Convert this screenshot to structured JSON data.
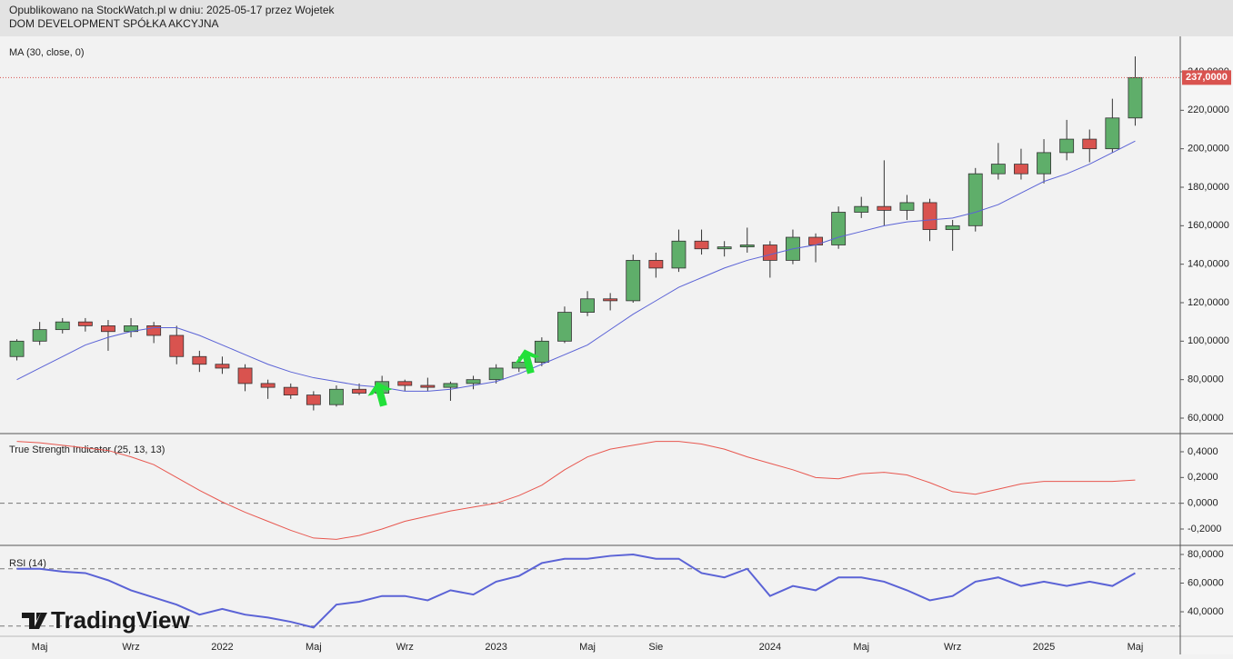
{
  "header": {
    "line1": "Opublikowano na StockWatch.pl w dniu: 2025-05-17 przez Wojetek",
    "line2": "DOM DEVELOPMENT SPÓŁKA AKCYJNA"
  },
  "logo": "TradingView",
  "chart_data": [
    {
      "type": "candlestick",
      "title": "MA (30, close, 0)",
      "categories": [
        null,
        "Maj",
        null,
        null,
        null,
        "Wrz",
        null,
        null,
        null,
        "2022",
        null,
        null,
        null,
        "Maj",
        null,
        null,
        null,
        "Wrz",
        null,
        null,
        null,
        "2023",
        null,
        null,
        null,
        "Maj",
        null,
        null,
        "Sie",
        null,
        null,
        null,
        null,
        "2024",
        null,
        null,
        null,
        "Maj",
        null,
        null,
        null,
        "Wrz",
        null,
        null,
        null,
        "2025",
        null,
        null,
        null,
        "Maj"
      ],
      "open": [
        92,
        100,
        106,
        110,
        108,
        105,
        108,
        103,
        92,
        88,
        86,
        78,
        76,
        72,
        67,
        75,
        73,
        79,
        77,
        76,
        78,
        80,
        86,
        89,
        100,
        115,
        122,
        121,
        142,
        138,
        152,
        148,
        149,
        150,
        142,
        154,
        150,
        167,
        170,
        168,
        172,
        158,
        160,
        187,
        192,
        187,
        198,
        205,
        200,
        216
      ],
      "high": [
        101,
        110,
        112,
        112,
        111,
        112,
        110,
        108,
        95,
        92,
        88,
        80,
        78,
        74,
        77,
        78,
        82,
        80,
        81,
        79,
        82,
        88,
        92,
        102,
        118,
        126,
        125,
        145,
        146,
        158,
        158,
        152,
        159,
        152,
        158,
        156,
        170,
        175,
        194,
        176,
        174,
        163,
        190,
        203,
        200,
        205,
        215,
        210,
        226,
        248
      ],
      "low": [
        90,
        98,
        104,
        105,
        95,
        102,
        99,
        88,
        84,
        83,
        74,
        70,
        70,
        64,
        66,
        72,
        68,
        74,
        74,
        69,
        75,
        78,
        84,
        87,
        99,
        113,
        116,
        120,
        133,
        136,
        145,
        144,
        146,
        133,
        140,
        141,
        148,
        164,
        160,
        163,
        152,
        147,
        157,
        184,
        184,
        182,
        194,
        193,
        198,
        212
      ],
      "close": [
        100,
        106,
        110,
        108,
        105,
        108,
        103,
        92,
        88,
        86,
        78,
        76,
        72,
        67,
        75,
        73,
        79,
        77,
        76,
        78,
        80,
        86,
        89,
        100,
        115,
        122,
        121,
        142,
        138,
        152,
        148,
        149,
        150,
        142,
        154,
        150,
        167,
        170,
        168,
        172,
        158,
        160,
        187,
        192,
        187,
        198,
        205,
        200,
        216,
        237
      ],
      "up_color": "#5fae6a",
      "down_color": "#d9534f",
      "ma_values": [
        80,
        86,
        92,
        98,
        102,
        105,
        107,
        107,
        103,
        98,
        93,
        88,
        84,
        81,
        79,
        77,
        76,
        74,
        74,
        75,
        77,
        79,
        83,
        88,
        93,
        98,
        106,
        114,
        121,
        128,
        133,
        138,
        142,
        145,
        148,
        150,
        154,
        157,
        160,
        162,
        163,
        164,
        167,
        171,
        177,
        183,
        187,
        192,
        198,
        204
      ],
      "ma_color": "#5b63d6",
      "last_price_label": "237,0000",
      "last_price_color": "#d9534f",
      "ylim": [
        51.97,
        258.42
      ],
      "yticks": [
        {
          "value": 60,
          "label": "60,0000"
        },
        {
          "value": 80,
          "label": "80,0000"
        },
        {
          "value": 100,
          "label": "100,0000"
        },
        {
          "value": 120,
          "label": "120,0000"
        },
        {
          "value": 140,
          "label": "140,0000"
        },
        {
          "value": 160,
          "label": "160,0000"
        },
        {
          "value": 180,
          "label": "180,0000"
        },
        {
          "value": 200,
          "label": "200,0000"
        },
        {
          "value": 220,
          "label": "220,0000"
        },
        {
          "value": 240,
          "label": "240,0000"
        }
      ]
    },
    {
      "type": "line",
      "title": "True Strength Indicator (25, 13, 13)",
      "color": "#e8574f",
      "values": [
        0.48,
        0.47,
        0.45,
        0.43,
        0.41,
        0.36,
        0.3,
        0.2,
        0.1,
        0.01,
        -0.07,
        -0.14,
        -0.21,
        -0.27,
        -0.28,
        -0.25,
        -0.2,
        -0.14,
        -0.1,
        -0.06,
        -0.03,
        0.0,
        0.06,
        0.14,
        0.26,
        0.36,
        0.42,
        0.45,
        0.48,
        0.48,
        0.46,
        0.42,
        0.36,
        0.31,
        0.26,
        0.2,
        0.19,
        0.23,
        0.24,
        0.22,
        0.16,
        0.09,
        0.07,
        0.11,
        0.15,
        0.17,
        0.17,
        0.17,
        0.17,
        0.18
      ],
      "levels": [
        0
      ],
      "ylim": [
        -0.327,
        0.534
      ],
      "yticks": [
        {
          "value": -0.2,
          "label": "-0,2000"
        },
        {
          "value": 0,
          "label": "0,0000"
        },
        {
          "value": 0.2,
          "label": "0,2000"
        },
        {
          "value": 0.4,
          "label": "0,4000"
        }
      ]
    },
    {
      "type": "line",
      "title": "RSI (14)",
      "color": "#5b63d6",
      "values": [
        70,
        70,
        68,
        67,
        62,
        55,
        50,
        45,
        38,
        42,
        38,
        36,
        33,
        29,
        45,
        47,
        51,
        51,
        48,
        55,
        52,
        61,
        65,
        74,
        77,
        77,
        79,
        80,
        77,
        77,
        67,
        64,
        70,
        51,
        58,
        55,
        64,
        64,
        61,
        55,
        48,
        51,
        61,
        64,
        58,
        61,
        58,
        61,
        58,
        67
      ],
      "levels": [
        70,
        30
      ],
      "ylim": [
        22.9,
        85.7
      ],
      "yticks": [
        {
          "value": 40,
          "label": "40,0000"
        },
        {
          "value": 60,
          "label": "60,0000"
        },
        {
          "value": 80,
          "label": "80,0000"
        }
      ]
    }
  ]
}
